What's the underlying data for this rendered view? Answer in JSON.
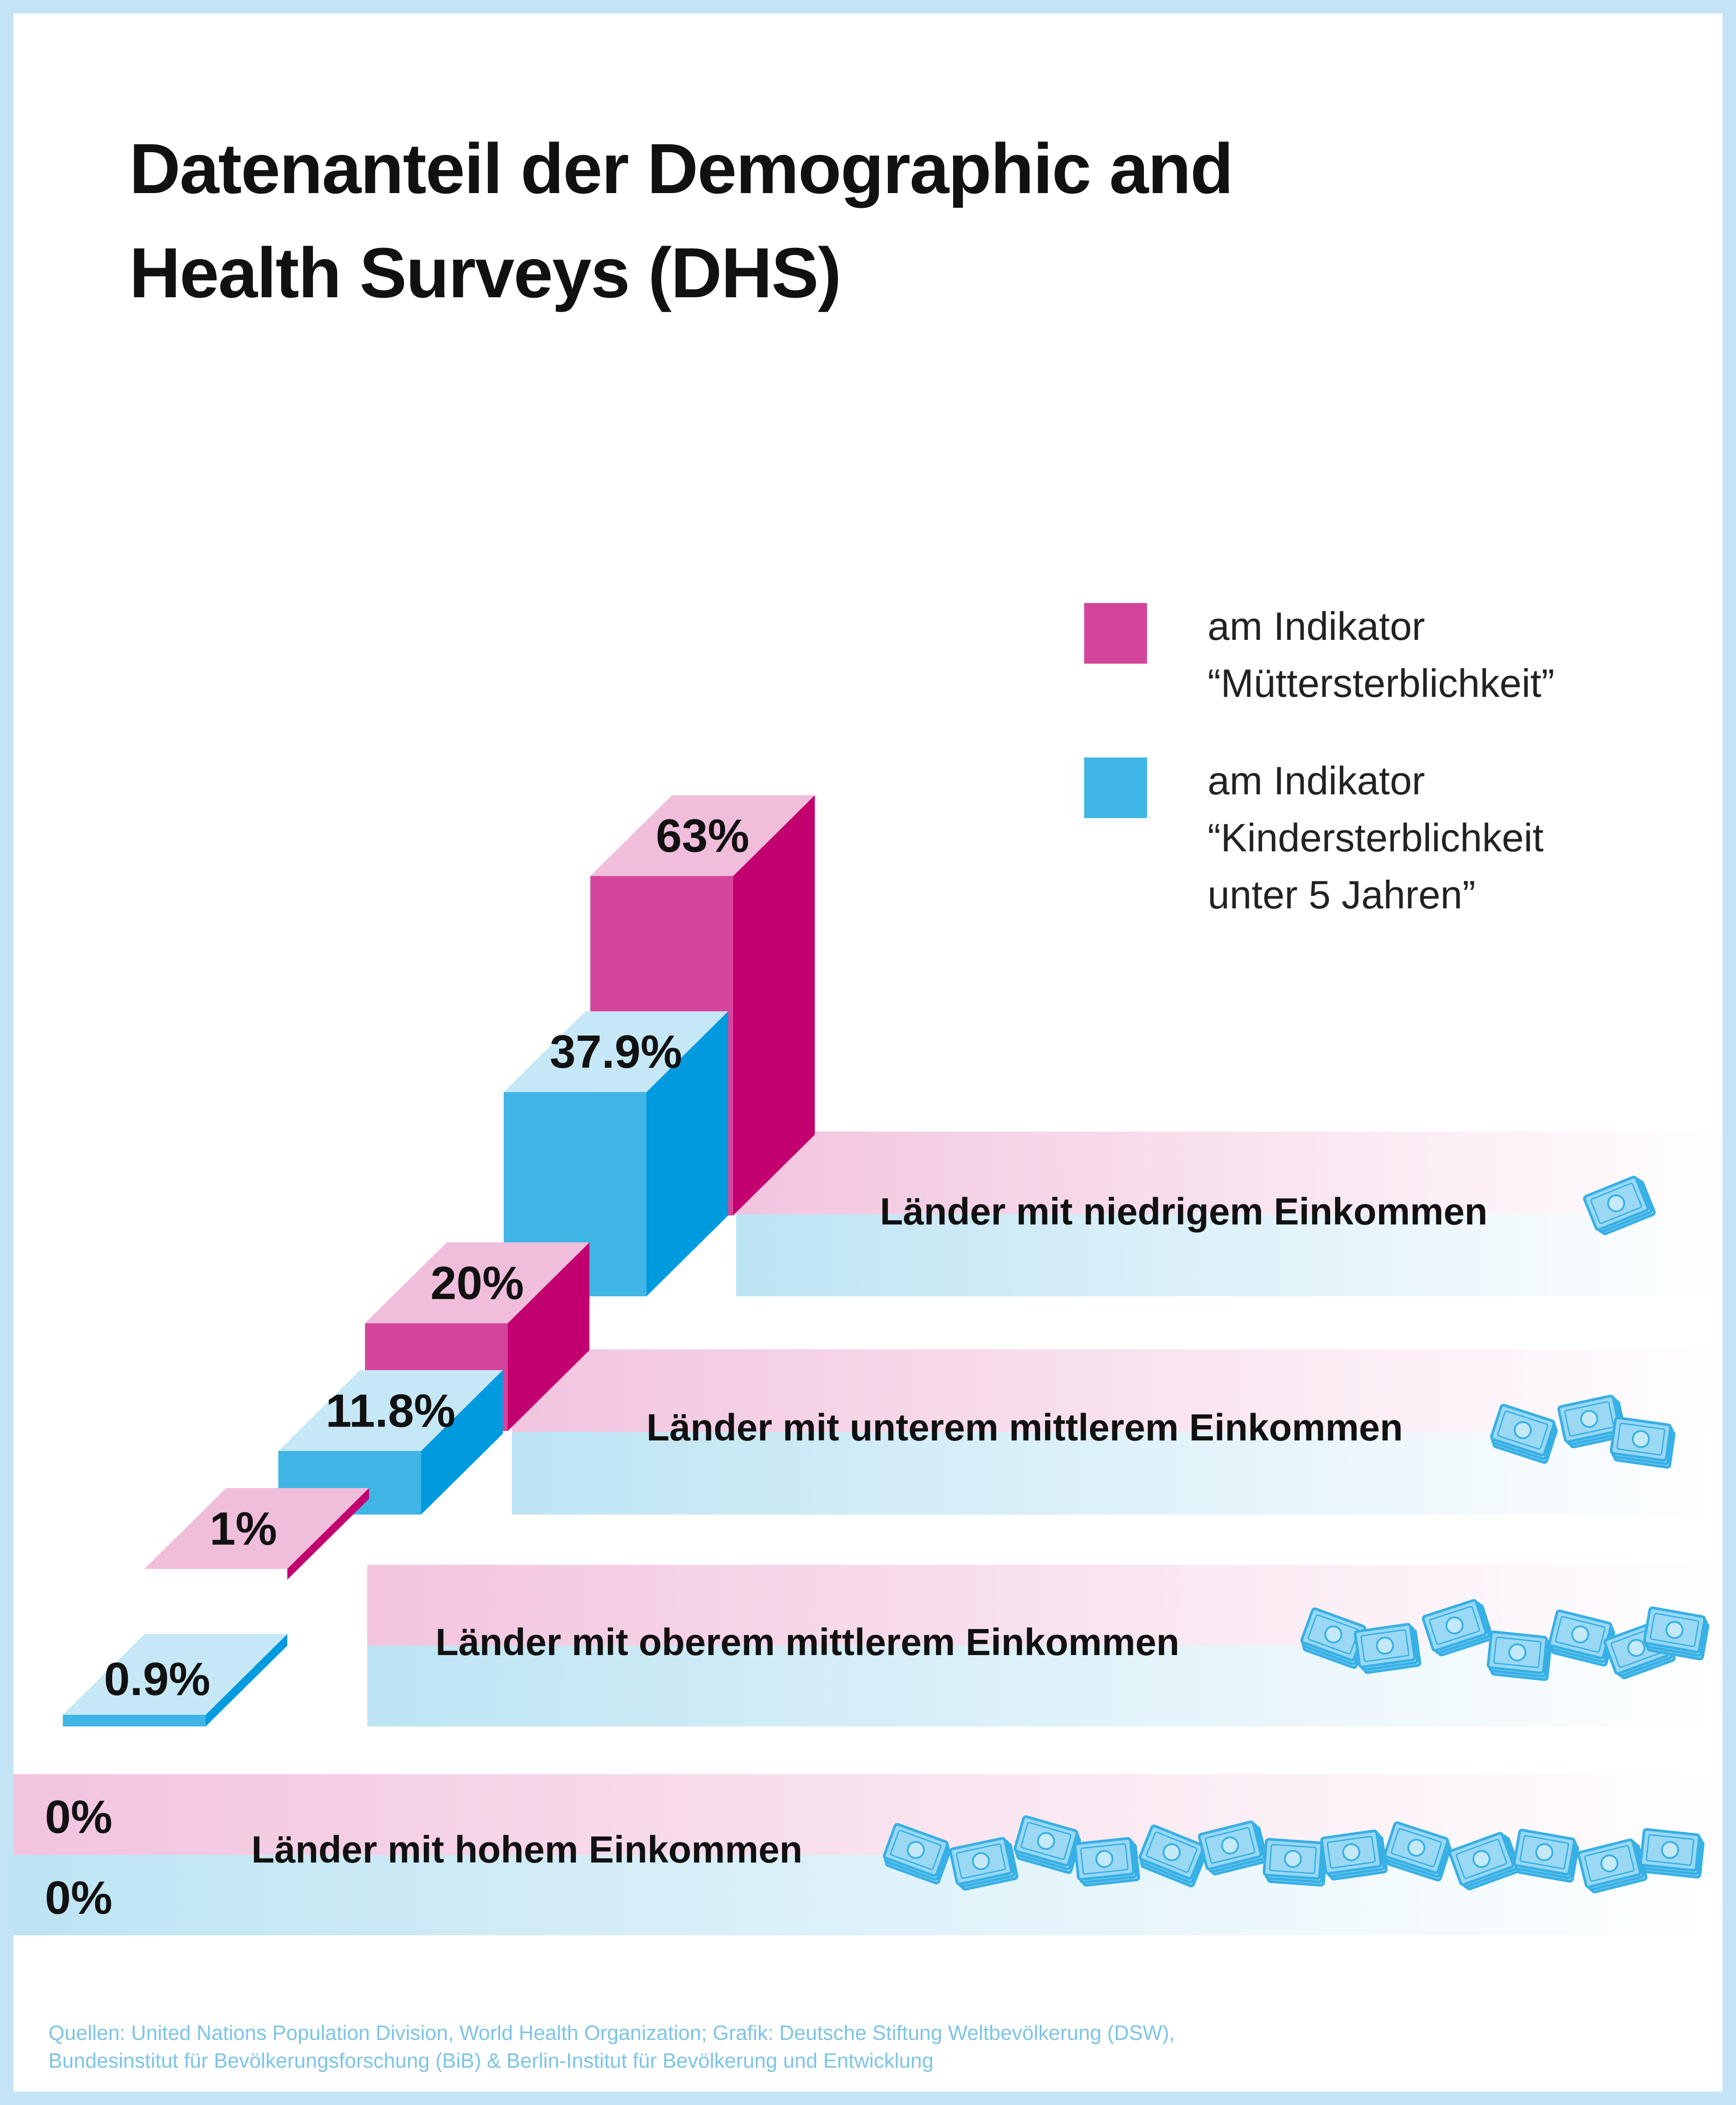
{
  "title": {
    "line1": "Datenanteil der Demographic and",
    "line2": "Health Surveys (DHS)"
  },
  "legend": [
    {
      "lines": [
        "am Indikator",
        "“Müttersterblichkeit”"
      ],
      "color": "#d5449b"
    },
    {
      "lines": [
        "am Indikator",
        "“Kindersterblichkeit",
        "unter 5 Jahren”"
      ],
      "color": "#3fb5e6"
    }
  ],
  "colors": {
    "pink_front": "#d5449b",
    "pink_side": "#c3006f",
    "pink_top": "#f0bddb",
    "pink_band": "#f2c4de",
    "blue_front": "#3fb5e6",
    "blue_side": "#009bdf",
    "blue_top": "#c6e8f6",
    "blue_band": "#bde4f3",
    "money": "#9ad8f4",
    "money_stroke": "#37b0e5"
  },
  "chart_data": {
    "type": "bar",
    "style": "3d-stepped",
    "categories": [
      "Länder mit niedrigem Einkommen",
      "Länder mit unterem mittlerem Einkommen",
      "Länder mit oberem mittlerem Einkommen",
      "Länder mit hohem Einkommen"
    ],
    "series": [
      {
        "name": "am Indikator “Müttersterblichkeit”",
        "values": [
          63,
          20,
          1,
          0
        ],
        "labels": [
          "63%",
          "20%",
          "1%",
          "0%"
        ]
      },
      {
        "name": "am Indikator “Kindersterblichkeit unter 5 Jahren”",
        "values": [
          37.9,
          11.8,
          0.9,
          0
        ],
        "labels": [
          "37.9%",
          "11.8%",
          "0.9%",
          "0%"
        ]
      }
    ],
    "unit": "%",
    "title": "Datenanteil der Demographic and Health Surveys (DHS)",
    "xlabel": "",
    "ylabel": "",
    "ylim": [
      0,
      63
    ]
  },
  "source": {
    "line1": "Quellen: United Nations Population Division, World Health Organization; Grafik: Deutsche Stiftung Weltbevölkerung (DSW),",
    "line2": "Bundesinstitut für Bevölkerungsforschung (BiB) & Berlin-Institut für Bevölkerung und Entwicklung"
  }
}
